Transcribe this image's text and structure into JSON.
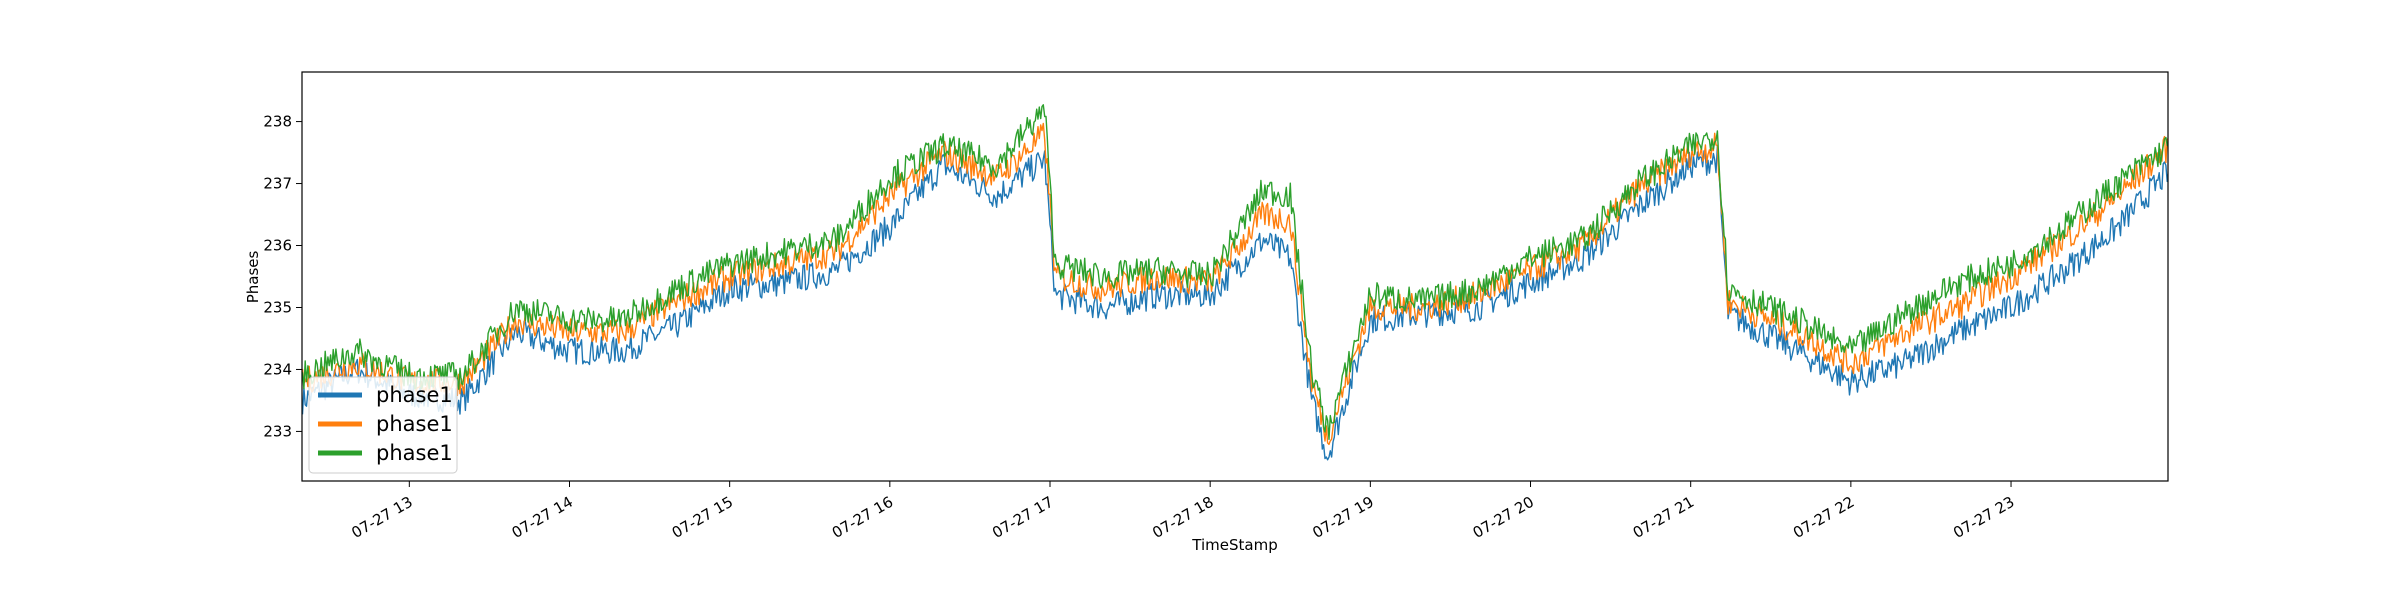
{
  "chart_data": {
    "type": "line",
    "title": "",
    "xlabel": "TimeStamp",
    "ylabel": "Phases",
    "x_start": "07-27 12:20",
    "x_end": "07-27 23:59",
    "xlim_hours": [
      12.33,
      23.98
    ],
    "ylim": [
      232.2,
      238.8
    ],
    "x_ticks": [
      "07-27 13",
      "07-27 14",
      "07-27 15",
      "07-27 16",
      "07-27 17",
      "07-27 18",
      "07-27 19",
      "07-27 20",
      "07-27 21",
      "07-27 22",
      "07-27 23"
    ],
    "x_tick_hours": [
      13,
      14,
      15,
      16,
      17,
      18,
      19,
      20,
      21,
      22,
      23
    ],
    "y_ticks": [
      233,
      234,
      235,
      236,
      237,
      238
    ],
    "grid": false,
    "legend_position": "lower-left",
    "x": [
      "12:20",
      "12:40",
      "13:00",
      "13:20",
      "13:40",
      "14:00",
      "14:20",
      "14:40",
      "15:00",
      "15:20",
      "15:40",
      "16:00",
      "16:20",
      "16:40",
      "16:58",
      "17:02",
      "17:20",
      "17:40",
      "18:00",
      "18:20",
      "18:30",
      "18:38",
      "18:44",
      "19:00",
      "19:20",
      "19:40",
      "20:00",
      "20:20",
      "20:40",
      "21:00",
      "21:10",
      "21:14",
      "21:40",
      "22:00",
      "22:20",
      "22:40",
      "23:00",
      "23:20",
      "23:40",
      "23:59"
    ],
    "series": [
      {
        "name": "phase1",
        "color": "#1f77b4",
        "values": [
          233.5,
          234.0,
          233.6,
          233.5,
          234.6,
          234.3,
          234.3,
          234.7,
          235.3,
          235.4,
          235.6,
          236.3,
          237.3,
          236.8,
          237.4,
          235.2,
          235.0,
          235.2,
          235.2,
          236.1,
          235.8,
          233.5,
          232.6,
          234.8,
          234.9,
          235.0,
          235.4,
          235.8,
          236.6,
          237.3,
          237.4,
          234.9,
          234.3,
          233.8,
          234.1,
          234.6,
          235.0,
          235.6,
          236.3,
          237.2
        ]
      },
      {
        "name": "phase1",
        "color": "#ff7f0e",
        "values": [
          233.8,
          234.1,
          233.8,
          233.8,
          234.8,
          234.6,
          234.6,
          235.1,
          235.5,
          235.7,
          235.9,
          236.8,
          237.5,
          237.1,
          237.8,
          235.5,
          235.3,
          235.5,
          235.4,
          236.5,
          236.4,
          233.8,
          232.9,
          235.0,
          235.0,
          235.2,
          235.6,
          236.0,
          236.9,
          237.5,
          237.6,
          235.1,
          234.6,
          234.1,
          234.6,
          235.0,
          235.5,
          236.1,
          236.8,
          237.6
        ]
      },
      {
        "name": "phase1",
        "color": "#2ca02c",
        "values": [
          233.9,
          234.3,
          233.9,
          233.9,
          235.0,
          234.8,
          234.8,
          235.3,
          235.7,
          235.9,
          236.1,
          237.1,
          237.6,
          237.3,
          238.2,
          235.7,
          235.5,
          235.6,
          235.5,
          236.9,
          236.8,
          234.0,
          233.0,
          235.2,
          235.1,
          235.3,
          235.8,
          236.1,
          237.0,
          237.6,
          237.8,
          235.3,
          234.8,
          234.3,
          234.9,
          235.4,
          235.7,
          236.3,
          237.0,
          237.6
        ]
      }
    ]
  }
}
